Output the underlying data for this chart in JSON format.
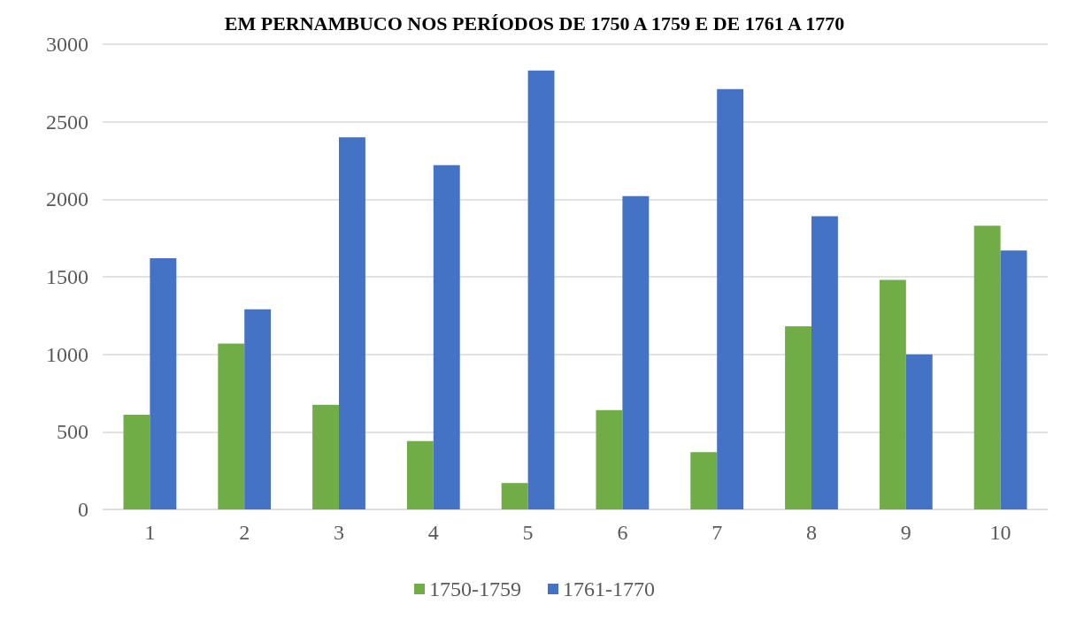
{
  "chart_data": {
    "type": "bar",
    "title": "EM PERNAMBUCO NOS PERÍODOS DE 1750 A 1759 E DE 1761 A 1770",
    "categories": [
      "1",
      "2",
      "3",
      "4",
      "5",
      "6",
      "7",
      "8",
      "9",
      "10"
    ],
    "series": [
      {
        "name": "1750-1759",
        "color": "#70ad47",
        "values": [
          610,
          1070,
          675,
          440,
          170,
          640,
          370,
          1180,
          1480,
          1830
        ]
      },
      {
        "name": "1761-1770",
        "color": "#4472c4",
        "values": [
          1620,
          1290,
          2400,
          2220,
          2830,
          2020,
          2710,
          1890,
          1000,
          1670
        ]
      }
    ],
    "ylim": [
      0,
      3000
    ],
    "yticks": [
      0,
      500,
      1000,
      1500,
      2000,
      2500,
      3000
    ],
    "grid": "y",
    "legend": "bottom"
  }
}
